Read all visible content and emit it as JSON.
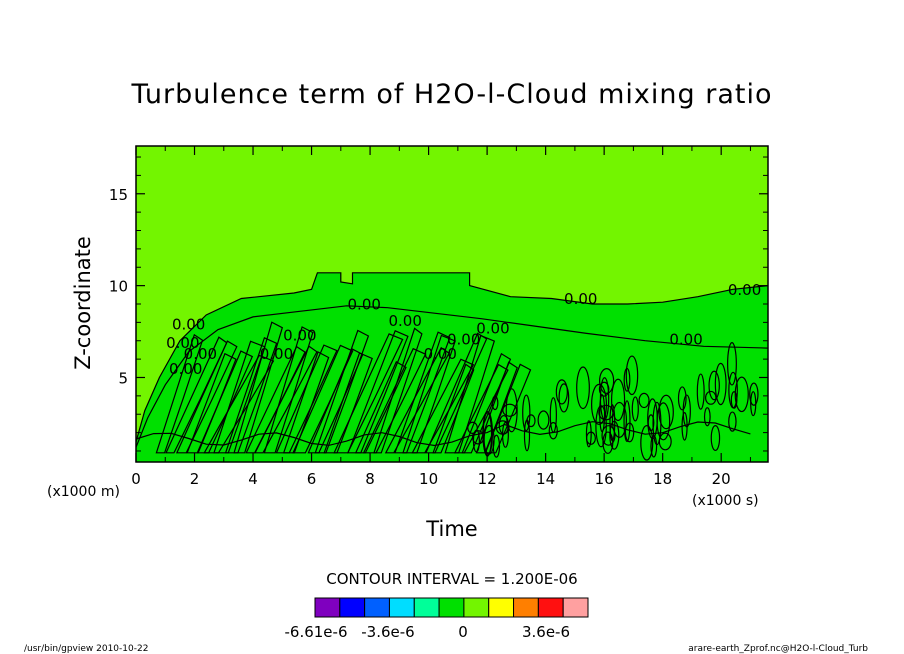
{
  "chart_data": {
    "type": "heatmap",
    "title": "Turbulence term of H2O-l-Cloud mixing ratio",
    "xlabel": "Time",
    "ylabel": "Z-coordinate",
    "x_unit": "(x1000 s)",
    "y_unit": "(x1000 m)",
    "xlim": [
      0,
      21.6
    ],
    "ylim": [
      0.4,
      17.6
    ],
    "xticks": [
      0,
      2,
      4,
      6,
      8,
      10,
      12,
      14,
      16,
      18,
      20
    ],
    "xtick_labels": [
      "0",
      "2",
      "4",
      "6",
      "8",
      "10",
      "12",
      "14",
      "16",
      "18",
      "20"
    ],
    "yticks": [
      5,
      10,
      15
    ],
    "ytick_labels": [
      "5",
      "10",
      "15"
    ],
    "background_color": "#73f500",
    "zero_region_color": "#73f500",
    "near_zero_color": "#00e000",
    "contour_interval_text": "CONTOUR INTERVAL = 1.200E-06",
    "contour_labels": [
      "0.00",
      "0.00",
      "0.00",
      "0.00",
      "0.00",
      "0.00",
      "0.00",
      "0.00",
      "0.00",
      "0.00",
      "0.00",
      "0.00",
      "0.00",
      "0.00"
    ],
    "colorbar": {
      "colors": [
        "#7f00bf",
        "#0000ff",
        "#0060ff",
        "#00ddff",
        "#00ff99",
        "#00e000",
        "#73f500",
        "#ffff00",
        "#ff7f00",
        "#ff1010",
        "#ffa0a0"
      ],
      "tick_labels": [
        "-6.61e-6",
        "-3.6e-6",
        "0",
        "3.6e-6"
      ]
    }
  },
  "footer": {
    "left": "/usr/bin/gpview   2010-10-22",
    "right": "arare-earth_Zprof.nc@H2O-l-Cloud_Turb"
  }
}
